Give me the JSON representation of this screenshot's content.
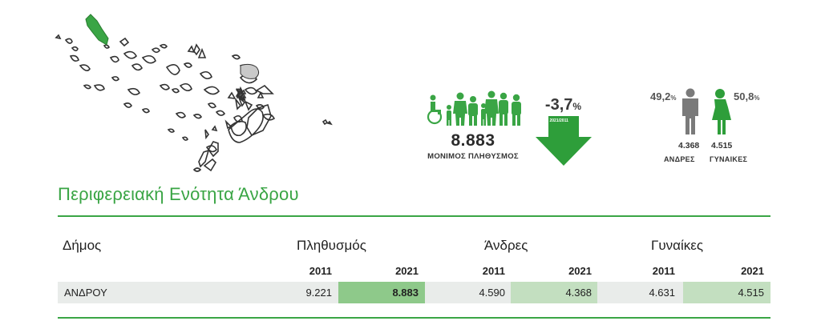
{
  "summary": {
    "population_value": "8.883",
    "population_label": "ΜΟΝΙΜΟΣ ΠΛΗΘΥΣΜΟΣ",
    "change_value": "-3,7",
    "change_unit": "%",
    "change_period": "2021/2011",
    "men_pct": "49,2",
    "women_pct": "50,8",
    "pct_unit": "%",
    "men_count": "4.368",
    "women_count": "4.515",
    "men_label": "ΑΝΔΡΕΣ",
    "women_label": "ΓΥΝΑΙΚΕΣ"
  },
  "region_title": "Περιφερειακή Ενότητα Άνδρου",
  "table": {
    "headers": {
      "municipality": "Δήμος",
      "population": "Πληθυσμός",
      "men": "Άνδρες",
      "women": "Γυναίκες"
    },
    "years": [
      "2011",
      "2021",
      "2011",
      "2021",
      "2011",
      "2021"
    ],
    "rows": [
      {
        "name": "ΑΝΔΡΟΥ",
        "pop_2011": "9.221",
        "pop_2021": "8.883",
        "men_2011": "4.590",
        "men_2021": "4.368",
        "women_2011": "4.631",
        "women_2021": "4.515"
      }
    ]
  },
  "colors": {
    "accent": "#3aa545",
    "highlight_strong": "#8ec98a",
    "highlight_light": "#c3dfc0",
    "row_bg": "#e9ecea",
    "male_icon": "#7a7a7a",
    "female_icon": "#2e9e3a"
  },
  "icons": {
    "map": "cyclades-map-icon",
    "population": "people-group-icon",
    "arrow": "arrow-down-icon",
    "man": "man-icon",
    "woman": "woman-icon"
  }
}
